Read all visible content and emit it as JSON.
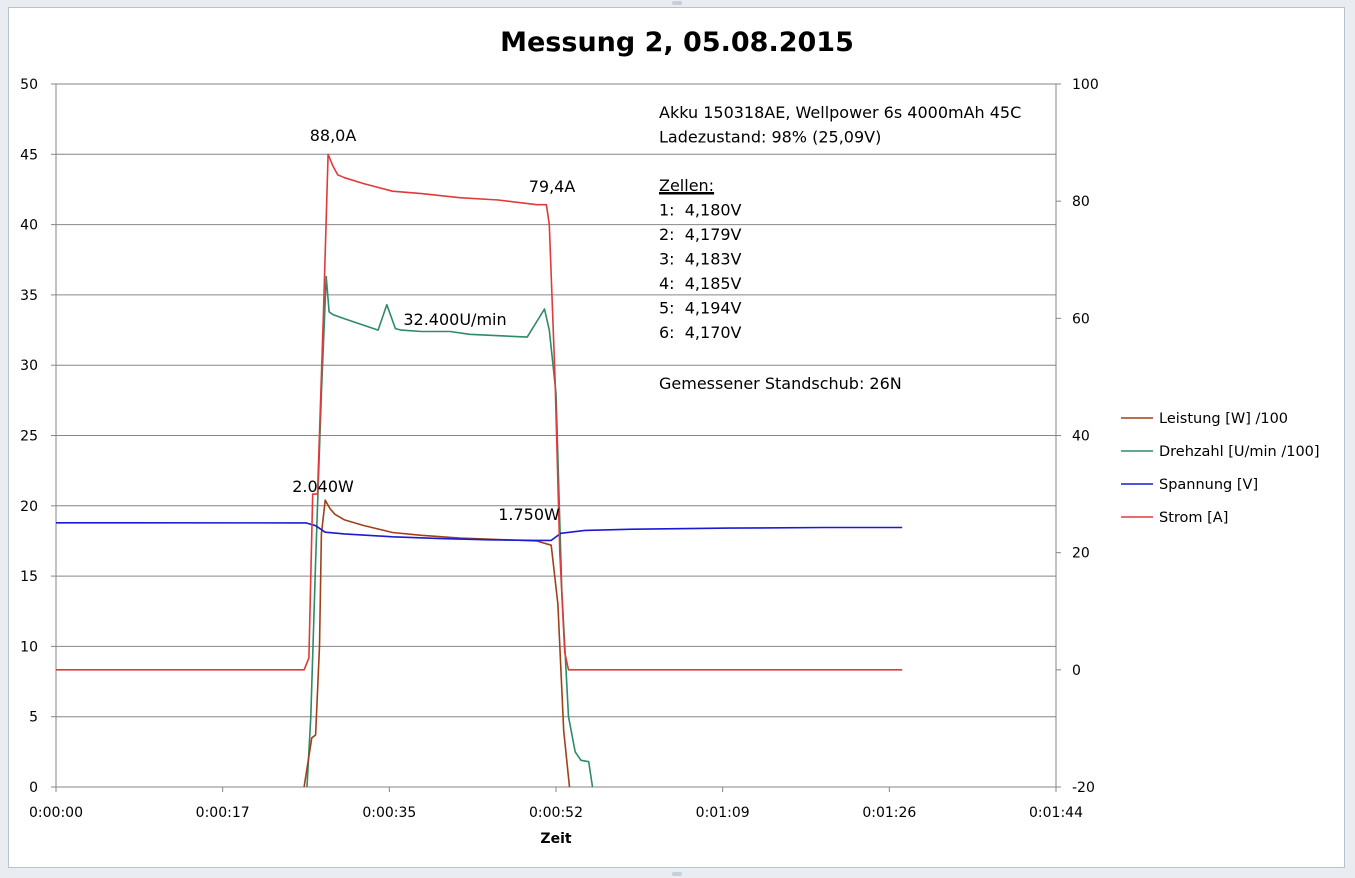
{
  "chart_data": {
    "type": "line",
    "title": "Messung 2, 05.08.2015",
    "xlabel": "Zeit",
    "ylabel_left": "",
    "ylabel_right": "",
    "x_unit": "seconds",
    "xlim": [
      0,
      104
    ],
    "ylim_left": [
      0,
      50
    ],
    "ylim_right": [
      -20,
      100
    ],
    "x_ticks": [
      "0:00:00",
      "0:00:17",
      "0:00:35",
      "0:00:52",
      "0:01:09",
      "0:01:26",
      "0:01:44"
    ],
    "y_ticks_left": [
      "0",
      "5",
      "10",
      "15",
      "20",
      "25",
      "30",
      "35",
      "40",
      "45",
      "50"
    ],
    "y_ticks_right": [
      "-20",
      "0",
      "20",
      "40",
      "60",
      "80",
      "100"
    ],
    "grid": "horizontal",
    "legend_position": "right",
    "series": [
      {
        "name": "Leistung [W] /100",
        "axis": "left",
        "color": "#a0401a",
        "x": [
          25.8,
          26.6,
          27.0,
          27.4,
          27.6,
          28.0,
          28.5,
          29.0,
          30,
          32,
          35,
          38,
          42,
          46,
          50,
          51.5,
          52.2,
          52.8,
          53.4
        ],
        "y": [
          0,
          3.5,
          3.7,
          10,
          18.0,
          20.4,
          19.8,
          19.4,
          19.0,
          18.6,
          18.1,
          17.9,
          17.7,
          17.6,
          17.5,
          17.2,
          13,
          4,
          0
        ]
      },
      {
        "name": "Drehzahl [U/min /100]",
        "axis": "left",
        "color": "#2e8b65",
        "x": [
          26.1,
          26.5,
          27.0,
          27.6,
          28.1,
          28.4,
          28.8,
          30,
          33.5,
          34.4,
          35.3,
          35.9,
          38,
          41,
          43,
          46,
          49,
          50.8,
          51.3,
          52.0,
          52.6,
          53.3,
          54.0,
          54.6,
          55.4,
          55.8
        ],
        "y": [
          0,
          5,
          16,
          28,
          36.3,
          33.8,
          33.6,
          33.3,
          32.5,
          34.3,
          32.6,
          32.5,
          32.4,
          32.4,
          32.2,
          32.1,
          32.0,
          34.0,
          32.5,
          28,
          14,
          5,
          2.5,
          1.9,
          1.8,
          0
        ]
      },
      {
        "name": "Spannung [V]",
        "axis": "right",
        "color": "#1a1ad6",
        "x": [
          0,
          26.0,
          27.0,
          28.0,
          30,
          35,
          40,
          45,
          50,
          51.5,
          52.5,
          55,
          60,
          70,
          80,
          88
        ],
        "y": [
          25.09,
          25.08,
          24.6,
          23.5,
          23.2,
          22.7,
          22.4,
          22.2,
          22.1,
          22.1,
          23.3,
          23.8,
          24.0,
          24.2,
          24.3,
          24.3
        ]
      },
      {
        "name": "Strom [A]",
        "axis": "right",
        "color": "#e03a3a",
        "x": [
          0,
          25.8,
          26.3,
          26.7,
          27.2,
          27.8,
          28.3,
          28.8,
          29.3,
          30,
          32,
          35,
          38,
          42,
          46,
          50,
          51.0,
          51.3,
          51.9,
          52.4,
          52.9,
          53.3,
          88
        ],
        "y": [
          0,
          0,
          2,
          30,
          30,
          60,
          88.0,
          86.0,
          84.5,
          84.0,
          83.0,
          81.7,
          81.3,
          80.6,
          80.2,
          79.4,
          79.4,
          76,
          50,
          20,
          3,
          0,
          0
        ]
      }
    ],
    "annotations": {
      "peak_current": "88,0A",
      "end_current": "79,4A",
      "peak_power": "2.040W",
      "end_power": "1.750W",
      "rpm": "32.400U/min",
      "info_lines": [
        "Akku 150318AE, Wellpower 6s 4000mAh 45C",
        "Ladezustand: 98% (25,09V)"
      ],
      "cells_heading": "Zellen:",
      "cells": [
        "1:  4,180V",
        "2:  4,179V",
        "3:  4,183V",
        "4:  4,185V",
        "5:  4,194V",
        "6:  4,170V"
      ],
      "thrust": "Gemessener Standschub: 26N"
    }
  }
}
